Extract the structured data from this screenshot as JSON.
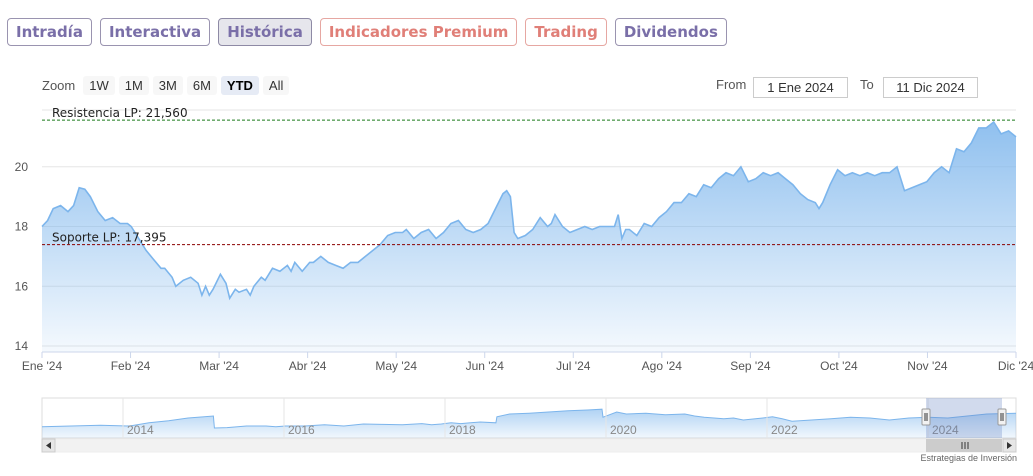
{
  "tabs": [
    {
      "label": "Intradía",
      "style": "normal"
    },
    {
      "label": "Interactiva",
      "style": "normal"
    },
    {
      "label": "Histórica",
      "style": "active"
    },
    {
      "label": "Indicadores Premium",
      "style": "premium"
    },
    {
      "label": "Trading",
      "style": "premium"
    },
    {
      "label": "Dividendos",
      "style": "normal"
    }
  ],
  "zoom": {
    "label": "Zoom",
    "buttons": [
      "1W",
      "1M",
      "3M",
      "6M",
      "YTD",
      "All"
    ],
    "selected": "YTD"
  },
  "range": {
    "from_label": "From",
    "from_value": "1 Ene 2024",
    "to_label": "To",
    "to_value": "11 Dic 2024"
  },
  "credit": "Estrategias de Inversión",
  "colors": {
    "line": "#7cb5ec",
    "fill_top": "#7cb5ec",
    "resistance": "#1a7a1a",
    "support": "#8b0000"
  },
  "chart_data": {
    "type": "area",
    "x_tick_labels": [
      "Ene '24",
      "Feb '24",
      "Mar '24",
      "Abr '24",
      "May '24",
      "Jun '24",
      "Jul '24",
      "Ago '24",
      "Sep '24",
      "Oct '24",
      "Nov '24",
      "Dic '24"
    ],
    "y_ticks": [
      14,
      16,
      18,
      20
    ],
    "ylim": [
      13.8,
      21.9
    ],
    "grid": true,
    "annotations": [
      {
        "label": "Resistencia LP: 21,560",
        "value": 21.56,
        "style": "dashed",
        "color": "resistance"
      },
      {
        "label": "Soporte LP: 17,395",
        "value": 17.395,
        "style": "dashed",
        "color": "support"
      }
    ],
    "series": [
      {
        "points": [
          [
            0,
            18.0
          ],
          [
            1.5,
            18.2
          ],
          [
            3,
            18.6
          ],
          [
            5,
            18.7
          ],
          [
            7,
            18.5
          ],
          [
            8.5,
            18.7
          ],
          [
            10,
            19.3
          ],
          [
            11.5,
            19.25
          ],
          [
            13,
            19.0
          ],
          [
            15,
            18.5
          ],
          [
            17,
            18.2
          ],
          [
            19,
            18.3
          ],
          [
            21,
            18.1
          ],
          [
            23,
            18.1
          ],
          [
            24,
            18.0
          ],
          [
            26,
            17.6
          ],
          [
            28,
            17.2
          ],
          [
            30,
            16.9
          ],
          [
            32,
            16.6
          ],
          [
            33,
            16.6
          ],
          [
            35,
            16.3
          ],
          [
            36,
            16.0
          ],
          [
            38,
            16.2
          ],
          [
            40,
            16.3
          ],
          [
            42,
            16.1
          ],
          [
            43,
            15.7
          ],
          [
            44,
            16.0
          ],
          [
            45,
            15.7
          ],
          [
            46,
            15.9
          ],
          [
            48,
            16.4
          ],
          [
            49.5,
            16.1
          ],
          [
            50.5,
            15.6
          ],
          [
            52,
            15.9
          ],
          [
            53,
            15.8
          ],
          [
            55,
            15.9
          ],
          [
            56,
            15.7
          ],
          [
            57,
            16.0
          ],
          [
            59,
            16.3
          ],
          [
            60,
            16.2
          ],
          [
            62,
            16.6
          ],
          [
            64,
            16.5
          ],
          [
            66,
            16.7
          ],
          [
            67,
            16.5
          ],
          [
            68,
            16.8
          ],
          [
            70,
            16.5
          ],
          [
            72,
            16.8
          ],
          [
            73,
            16.8
          ],
          [
            75,
            17.0
          ],
          [
            77,
            16.8
          ],
          [
            79,
            16.7
          ],
          [
            81,
            16.6
          ],
          [
            83,
            16.8
          ],
          [
            85,
            16.8
          ],
          [
            87,
            17.0
          ],
          [
            89,
            17.2
          ],
          [
            91,
            17.4
          ],
          [
            93,
            17.7
          ],
          [
            95,
            17.8
          ],
          [
            97,
            17.8
          ],
          [
            98,
            17.9
          ],
          [
            100,
            17.6
          ],
          [
            102,
            17.8
          ],
          [
            104,
            17.9
          ],
          [
            106,
            17.6
          ],
          [
            108,
            17.8
          ],
          [
            110,
            18.1
          ],
          [
            112,
            18.2
          ],
          [
            114,
            17.9
          ],
          [
            116,
            17.8
          ],
          [
            118,
            17.9
          ],
          [
            120,
            18.1
          ],
          [
            122,
            18.6
          ],
          [
            124,
            19.1
          ],
          [
            125,
            19.2
          ],
          [
            126,
            19.0
          ],
          [
            127,
            17.8
          ],
          [
            128,
            17.6
          ],
          [
            130,
            17.7
          ],
          [
            132,
            17.9
          ],
          [
            134,
            18.3
          ],
          [
            136,
            18.0
          ],
          [
            137,
            18.1
          ],
          [
            138,
            18.4
          ],
          [
            140,
            18.0
          ],
          [
            142,
            17.8
          ],
          [
            144,
            17.9
          ],
          [
            146,
            18.0
          ],
          [
            148,
            17.9
          ],
          [
            150,
            18.0
          ],
          [
            152,
            18.0
          ],
          [
            154,
            18.0
          ],
          [
            155,
            18.4
          ],
          [
            156,
            17.6
          ],
          [
            157,
            17.9
          ],
          [
            158,
            17.9
          ],
          [
            160,
            17.7
          ],
          [
            162,
            18.1
          ],
          [
            164,
            18.0
          ],
          [
            166,
            18.3
          ],
          [
            168,
            18.5
          ],
          [
            170,
            18.8
          ],
          [
            172,
            18.8
          ],
          [
            174,
            19.1
          ],
          [
            176,
            19.0
          ],
          [
            178,
            19.4
          ],
          [
            180,
            19.3
          ],
          [
            182,
            19.6
          ],
          [
            184,
            19.8
          ],
          [
            186,
            19.7
          ],
          [
            188,
            20.0
          ],
          [
            190,
            19.5
          ],
          [
            192,
            19.6
          ],
          [
            194,
            19.8
          ],
          [
            196,
            19.7
          ],
          [
            198,
            19.8
          ],
          [
            200,
            19.6
          ],
          [
            202,
            19.4
          ],
          [
            204,
            19.1
          ],
          [
            206,
            18.9
          ],
          [
            208,
            18.8
          ],
          [
            209,
            18.6
          ],
          [
            210,
            18.8
          ],
          [
            212,
            19.4
          ],
          [
            214,
            19.9
          ],
          [
            216,
            19.7
          ],
          [
            218,
            19.8
          ],
          [
            220,
            19.7
          ],
          [
            222,
            19.8
          ],
          [
            224,
            19.7
          ],
          [
            226,
            19.8
          ],
          [
            228,
            19.8
          ],
          [
            230,
            20.0
          ],
          [
            232,
            19.2
          ],
          [
            234,
            19.3
          ],
          [
            236,
            19.4
          ],
          [
            238,
            19.5
          ],
          [
            240,
            19.8
          ],
          [
            242,
            20.0
          ],
          [
            244,
            19.8
          ],
          [
            246,
            20.6
          ],
          [
            248,
            20.5
          ],
          [
            250,
            20.8
          ],
          [
            252,
            21.3
          ],
          [
            254,
            21.3
          ],
          [
            256,
            21.5
          ],
          [
            258,
            21.1
          ],
          [
            260,
            21.2
          ],
          [
            262,
            21.0
          ]
        ]
      }
    ],
    "navigator": {
      "x_labels": [
        "2014",
        "2016",
        "2018",
        "2020",
        "2022",
        "2024"
      ],
      "points": [
        [
          0,
          0.28
        ],
        [
          3,
          0.3
        ],
        [
          6,
          0.32
        ],
        [
          9,
          0.3
        ],
        [
          11,
          0.38
        ],
        [
          13,
          0.43
        ],
        [
          15,
          0.5
        ],
        [
          16,
          0.52
        ],
        [
          17.6,
          0.55
        ],
        [
          17.7,
          0.25
        ],
        [
          19,
          0.26
        ],
        [
          21,
          0.3
        ],
        [
          23,
          0.3
        ],
        [
          24,
          0.28
        ],
        [
          25,
          0.3
        ],
        [
          27,
          0.3
        ],
        [
          29,
          0.33
        ],
        [
          31,
          0.3
        ],
        [
          33,
          0.35
        ],
        [
          35,
          0.34
        ],
        [
          37,
          0.33
        ],
        [
          39,
          0.36
        ],
        [
          40,
          0.33
        ],
        [
          41,
          0.35
        ],
        [
          42,
          0.38
        ],
        [
          43,
          0.36
        ],
        [
          44,
          0.38
        ],
        [
          45,
          0.4
        ],
        [
          46.6,
          0.38
        ],
        [
          46.7,
          0.53
        ],
        [
          48,
          0.6
        ],
        [
          50,
          0.62
        ],
        [
          52,
          0.65
        ],
        [
          54,
          0.68
        ],
        [
          56,
          0.7
        ],
        [
          57.5,
          0.72
        ],
        [
          57.6,
          0.52
        ],
        [
          59,
          0.65
        ],
        [
          60,
          0.6
        ],
        [
          62,
          0.62
        ],
        [
          64,
          0.58
        ],
        [
          66,
          0.6
        ],
        [
          67,
          0.55
        ],
        [
          68,
          0.52
        ],
        [
          69,
          0.5
        ],
        [
          70,
          0.48
        ],
        [
          71,
          0.5
        ],
        [
          72,
          0.45
        ],
        [
          74,
          0.5
        ],
        [
          75,
          0.53
        ],
        [
          76,
          0.48
        ],
        [
          77,
          0.42
        ],
        [
          79,
          0.45
        ],
        [
          81,
          0.48
        ],
        [
          83,
          0.52
        ],
        [
          85,
          0.5
        ],
        [
          87,
          0.45
        ],
        [
          89,
          0.5
        ],
        [
          91,
          0.52
        ],
        [
          93,
          0.5
        ],
        [
          95,
          0.55
        ],
        [
          97,
          0.6
        ],
        [
          100,
          0.62
        ]
      ]
    }
  }
}
